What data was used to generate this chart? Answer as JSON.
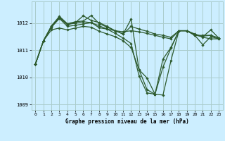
{
  "title": "Graphe pression niveau de la mer (hPa)",
  "background_color": "#cceeff",
  "grid_color": "#aacccc",
  "line_color": "#2d5a2d",
  "xlim": [
    -0.5,
    23.5
  ],
  "ylim": [
    1008.8,
    1012.8
  ],
  "yticks": [
    1009,
    1010,
    1011,
    1012
  ],
  "xticks": [
    0,
    1,
    2,
    3,
    4,
    5,
    6,
    7,
    8,
    9,
    10,
    11,
    12,
    13,
    14,
    15,
    16,
    17,
    18,
    19,
    20,
    21,
    22,
    23
  ],
  "series": [
    [
      1010.5,
      1011.35,
      1011.85,
      1012.17,
      1011.88,
      1011.92,
      1011.97,
      1012.02,
      1011.83,
      1011.78,
      1011.72,
      1011.68,
      1011.72,
      1011.68,
      1011.62,
      1011.55,
      1011.48,
      1011.42,
      1011.72,
      1011.72,
      1011.6,
      1011.5,
      1011.75,
      1011.45
    ],
    [
      1010.5,
      1011.35,
      1011.85,
      1012.22,
      1011.95,
      1012.02,
      1012.27,
      1012.1,
      1012.02,
      1011.88,
      1011.72,
      1011.6,
      1011.88,
      1011.78,
      1011.7,
      1011.6,
      1011.55,
      1011.48,
      1011.72,
      1011.72,
      1011.55,
      1011.52,
      1011.55,
      1011.45
    ],
    [
      1010.5,
      1011.35,
      1011.9,
      1012.25,
      1011.98,
      1012.05,
      1012.08,
      1012.28,
      1011.98,
      1011.85,
      1011.72,
      1011.6,
      1012.15,
      1010.28,
      1009.55,
      1009.38,
      1010.68,
      1011.1,
      1011.72,
      1011.72,
      1011.55,
      1011.55,
      1011.55,
      1011.45
    ],
    [
      1010.5,
      1011.35,
      1011.88,
      1012.2,
      1011.95,
      1012.0,
      1012.05,
      1012.02,
      1011.9,
      1011.78,
      1011.62,
      1011.45,
      1011.25,
      1010.05,
      1009.43,
      1009.38,
      1010.38,
      1011.08,
      1011.72,
      1011.72,
      1011.58,
      1011.48,
      1011.42,
      1011.42
    ]
  ],
  "single_series": [
    1010.5,
    1011.35,
    1011.75,
    1011.85,
    1011.75,
    1011.82,
    1011.88,
    1011.85,
    1011.7,
    1011.62,
    1011.52,
    1011.35,
    1011.15,
    1010.32,
    1009.98,
    1009.4,
    1009.38,
    1010.65,
    1011.72,
    1011.72,
    1011.55,
    1011.22,
    1011.55,
    1011.45
  ]
}
